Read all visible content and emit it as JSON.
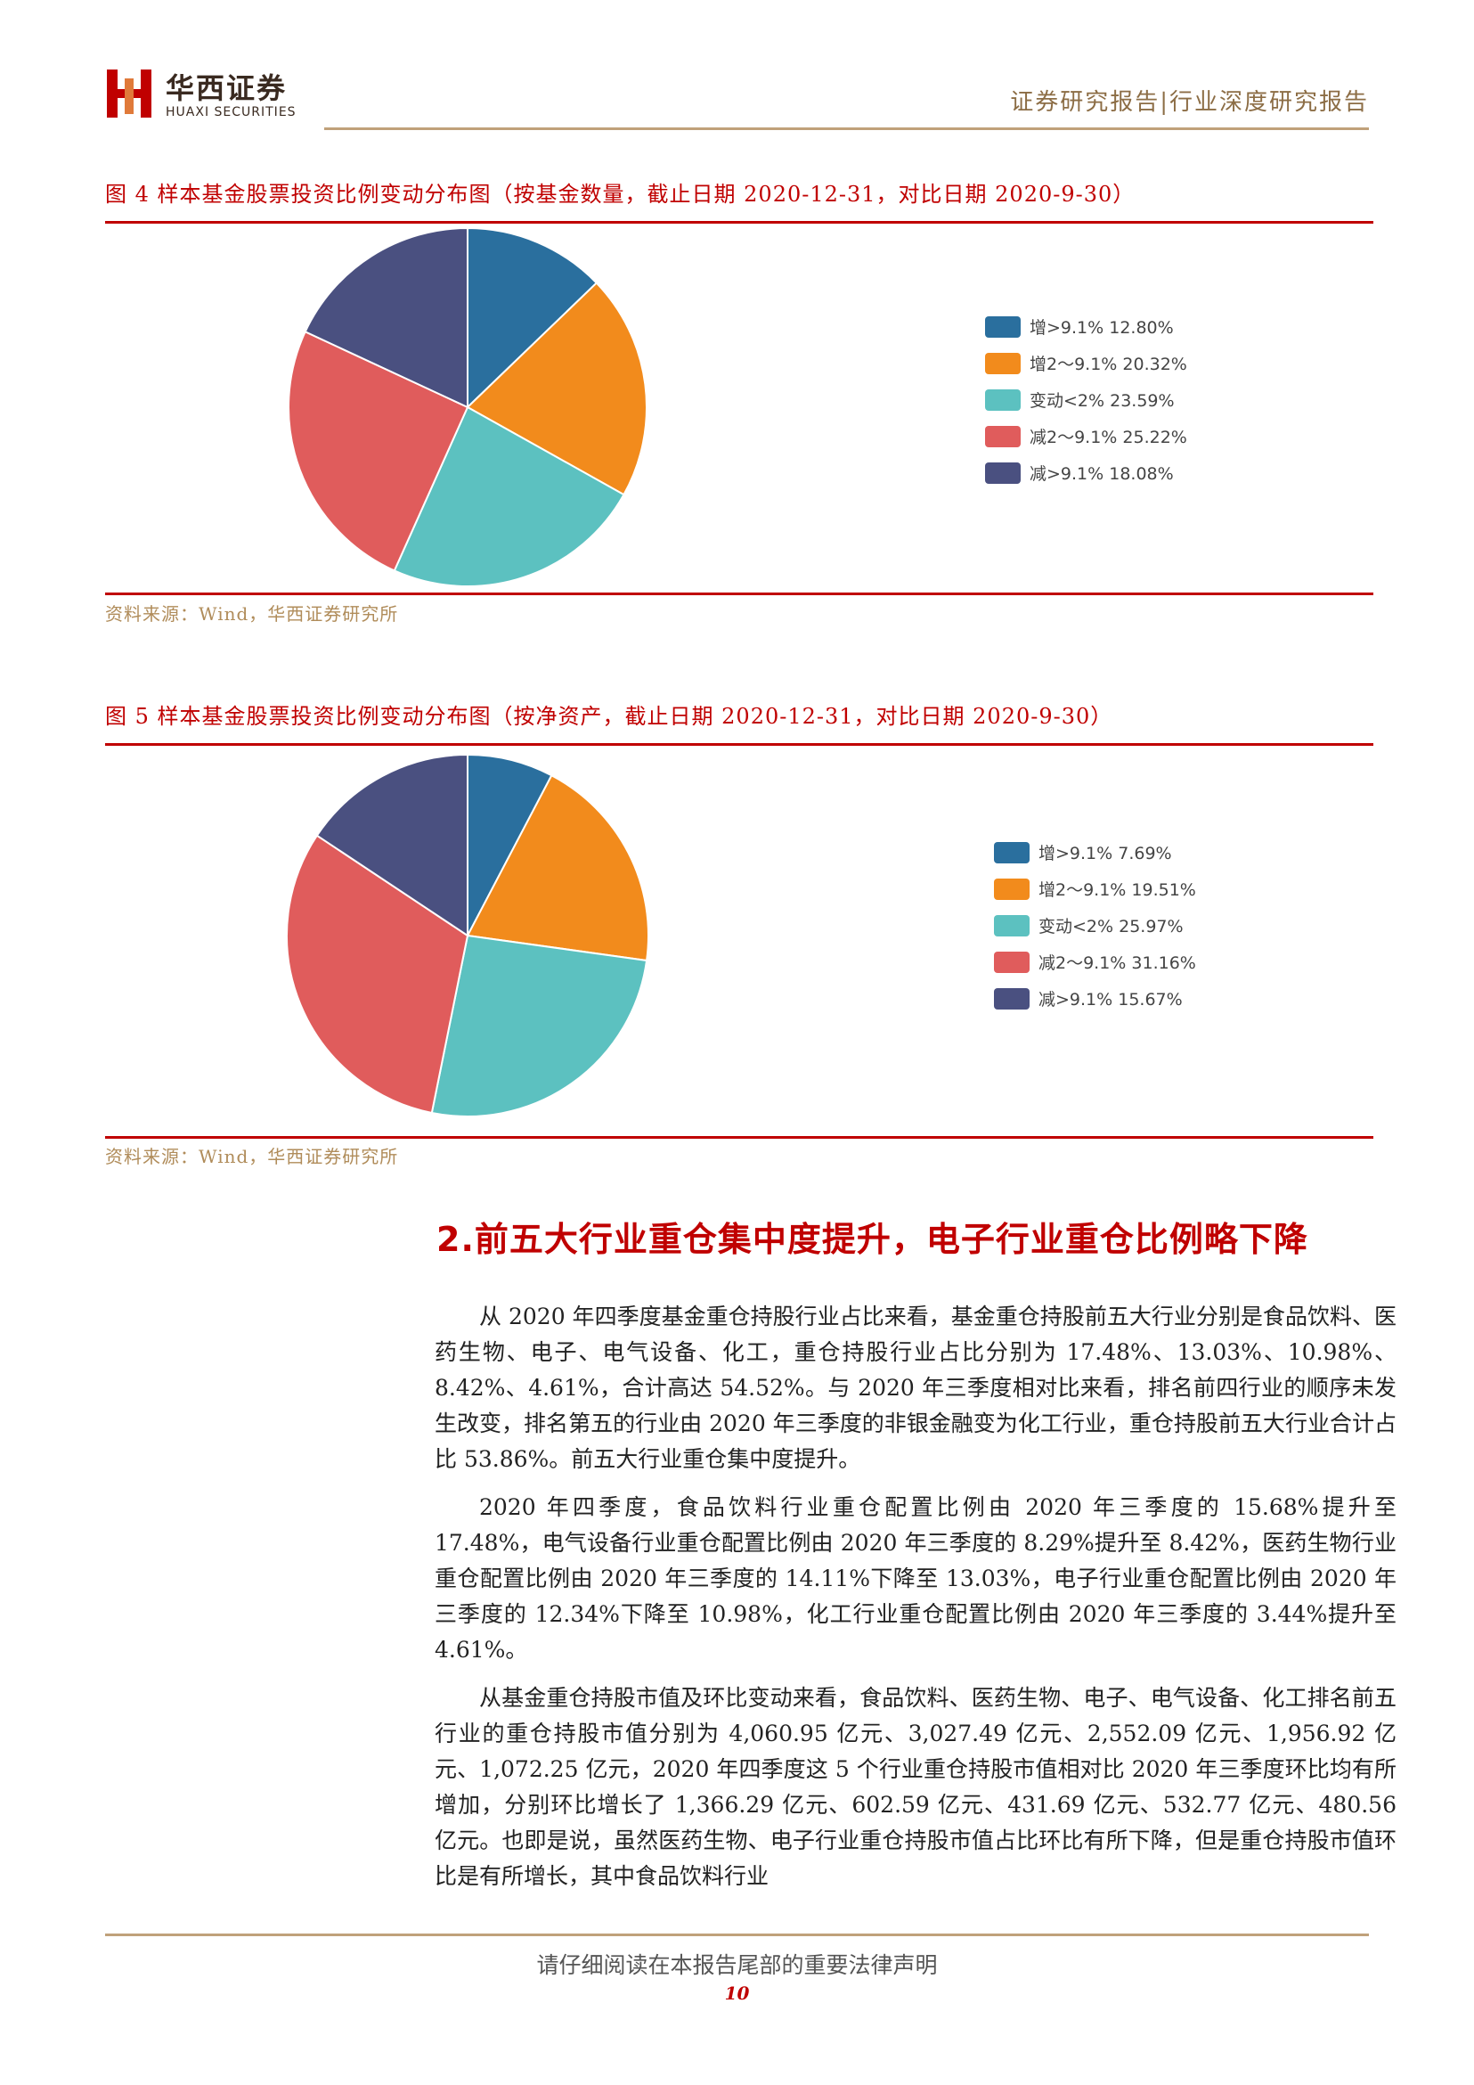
{
  "header": {
    "logo_cn": "华西证券",
    "logo_en": "HUAXI SECURITIES",
    "report_type": "证券研究报告|行业深度研究报告"
  },
  "colors": {
    "accent_red": "#c00000",
    "gold": "#c0a17a",
    "source_text": "#b08c5a"
  },
  "figures": [
    {
      "title": "图 4  样本基金股票投资比例变动分布图（按基金数量，截止日期 2020-12-31，对比日期 2020-9-30）",
      "source": "资料来源：Wind，华西证券研究所",
      "legend": [
        "增>9.1% 12.80%",
        "增2～9.1% 20.32%",
        "变动<2% 23.59%",
        "减2～9.1% 25.22%",
        "减>9.1% 18.08%"
      ]
    },
    {
      "title": "图 5  样本基金股票投资比例变动分布图（按净资产，截止日期 2020-12-31，对比日期 2020-9-30）",
      "source": "资料来源：Wind，华西证券研究所",
      "legend": [
        "增>9.1% 7.69%",
        "增2～9.1% 19.51%",
        "变动<2% 25.97%",
        "减2～9.1% 31.16%",
        "减>9.1% 15.67%"
      ]
    }
  ],
  "chart_data": [
    {
      "type": "pie",
      "categories": [
        "增>9.1%",
        "增2～9.1%",
        "变动<2%",
        "减2～9.1%",
        "减>9.1%"
      ],
      "values": [
        12.8,
        20.32,
        23.59,
        25.22,
        18.08
      ],
      "colors": [
        "#2a6f9e",
        "#f28b1c",
        "#5cc1c0",
        "#e05c5c",
        "#4a5080"
      ],
      "legend_position": "right"
    },
    {
      "type": "pie",
      "categories": [
        "增>9.1%",
        "增2～9.1%",
        "变动<2%",
        "减2～9.1%",
        "减>9.1%"
      ],
      "values": [
        7.69,
        19.51,
        25.97,
        31.16,
        15.67
      ],
      "colors": [
        "#2a6f9e",
        "#f28b1c",
        "#5cc1c0",
        "#e05c5c",
        "#4a5080"
      ],
      "legend_position": "right"
    }
  ],
  "section": {
    "title": "2.前五大行业重仓集中度提升，电子行业重仓比例略下降",
    "paragraphs": [
      "从 2020 年四季度基金重仓持股行业占比来看，基金重仓持股前五大行业分别是食品饮料、医药生物、电子、电气设备、化工，重仓持股行业占比分别为 17.48%、13.03%、10.98%、8.42%、4.61%，合计高达 54.52%。与 2020 年三季度相对比来看，排名前四行业的顺序未发生改变，排名第五的行业由 2020 年三季度的非银金融变为化工行业，重仓持股前五大行业合计占比 53.86%。前五大行业重仓集中度提升。",
      "2020 年四季度，食品饮料行业重仓配置比例由 2020 年三季度的 15.68%提升至 17.48%，电气设备行业重仓配置比例由 2020 年三季度的 8.29%提升至 8.42%，医药生物行业重仓配置比例由 2020 年三季度的 14.11%下降至 13.03%，电子行业重仓配置比例由 2020 年三季度的 12.34%下降至 10.98%，化工行业重仓配置比例由 2020 年三季度的 3.44%提升至 4.61%。",
      "从基金重仓持股市值及环比变动来看，食品饮料、医药生物、电子、电气设备、化工排名前五行业的重仓持股市值分别为 4,060.95 亿元、3,027.49 亿元、2,552.09 亿元、1,956.92 亿元、1,072.25 亿元，2020 年四季度这 5 个行业重仓持股市值相对比 2020 年三季度环比均有所增加，分别环比增长了 1,366.29 亿元、602.59 亿元、431.69 亿元、532.77 亿元、480.56 亿元。也即是说，虽然医药生物、电子行业重仓持股市值占比环比有所下降，但是重仓持股市值环比是有所增长，其中食品饮料行业"
    ]
  },
  "footer": {
    "note": "请仔细阅读在本报告尾部的重要法律声明",
    "page_number": "10"
  }
}
